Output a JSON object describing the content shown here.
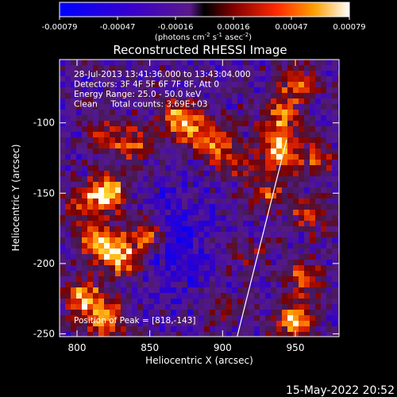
{
  "chart_data": {
    "type": "heatmap",
    "title": "Reconstructed RHESSI Image",
    "colorbar": {
      "ticks": [
        "-0.00079",
        "-0.00047",
        "-0.00016",
        "0.00016",
        "0.00047",
        "0.00079"
      ],
      "unit_main": "(photons cm",
      "unit_exp1": "-2",
      "unit_mid": " s",
      "unit_exp2": "-1",
      "unit_mid2": " asec",
      "unit_exp3": "-2",
      "unit_end": ")",
      "range": [
        -0.00079,
        0.00079
      ]
    },
    "xlabel": "Heliocentric X (arcsec)",
    "ylabel": "Heliocentric Y (arcsec)",
    "xlim": [
      788,
      980
    ],
    "ylim": [
      -252,
      -55
    ],
    "xticks": [
      800,
      850,
      900,
      950
    ],
    "yticks": [
      -100,
      -150,
      -200,
      -250
    ],
    "xtick_labels": [
      "800",
      "850",
      "900",
      "950"
    ],
    "ytick_labels": [
      "-100",
      "-150",
      "-200",
      "-250"
    ],
    "annotations": [
      "28-Jul-2013 13:41:36.000 to 13:43:04.000",
      "Detectors: 3F 4F 5F 6F 7F 8F, Att 0",
      "Energy Range: 25.0 - 50.0 keV",
      "Clean     Total counts: 3.69E+03"
    ],
    "peak_label": "Position of Peak = [818,-143]",
    "limb_x": [
      910,
      944
    ],
    "limb_y": [
      -252,
      -112
    ],
    "peaks": [
      {
        "x": 820,
        "y": -150,
        "amp": 1.0
      },
      {
        "x": 815,
        "y": -185,
        "amp": 0.9
      },
      {
        "x": 830,
        "y": -195,
        "amp": 0.8
      },
      {
        "x": 805,
        "y": -225,
        "amp": 0.8
      },
      {
        "x": 820,
        "y": -240,
        "amp": 0.75
      },
      {
        "x": 848,
        "y": -180,
        "amp": 0.65
      },
      {
        "x": 800,
        "y": -160,
        "amp": 0.45
      },
      {
        "x": 880,
        "y": -105,
        "amp": 0.55
      },
      {
        "x": 870,
        "y": -95,
        "amp": 0.6
      },
      {
        "x": 840,
        "y": -115,
        "amp": 0.55
      },
      {
        "x": 820,
        "y": -108,
        "amp": 0.45
      },
      {
        "x": 895,
        "y": -115,
        "amp": 0.45
      },
      {
        "x": 905,
        "y": -128,
        "amp": 0.4
      },
      {
        "x": 938,
        "y": -120,
        "amp": 0.95
      },
      {
        "x": 940,
        "y": -95,
        "amp": 0.65
      },
      {
        "x": 950,
        "y": -72,
        "amp": 0.6
      },
      {
        "x": 930,
        "y": -150,
        "amp": 0.5
      },
      {
        "x": 960,
        "y": -165,
        "amp": 0.5
      },
      {
        "x": 955,
        "y": -210,
        "amp": 0.55
      },
      {
        "x": 950,
        "y": -240,
        "amp": 0.85
      },
      {
        "x": 965,
        "y": -125,
        "amp": 0.45
      },
      {
        "x": 915,
        "y": -195,
        "amp": 0.3
      },
      {
        "x": 900,
        "y": -230,
        "amp": 0.3
      }
    ]
  },
  "footer": {
    "timestamp": "15-May-2022 20:52"
  }
}
